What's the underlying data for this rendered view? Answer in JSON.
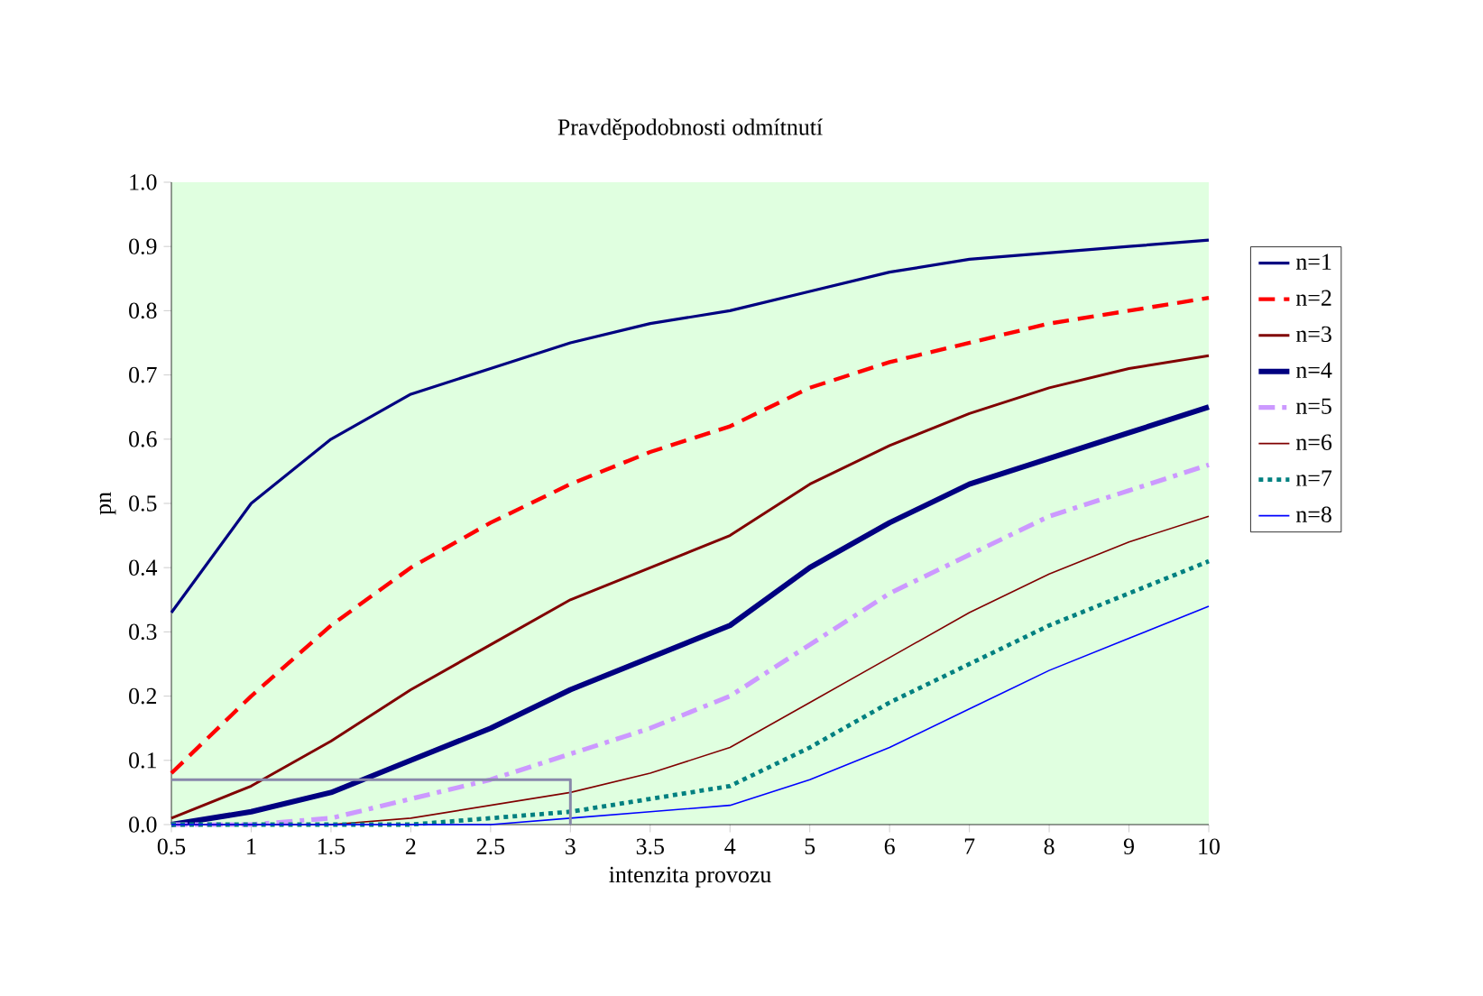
{
  "chart_data": {
    "type": "line",
    "title": "Pravděpodobnosti odmítnutí",
    "xlabel": "intenzita provozu",
    "ylabel": "pn",
    "categories": [
      "0.5",
      "1",
      "1.5",
      "2",
      "2.5",
      "3",
      "3.5",
      "4",
      "5",
      "6",
      "7",
      "8",
      "9",
      "10"
    ],
    "ylim": [
      0,
      1
    ],
    "yticks": [
      {
        "value": 0,
        "label": "0.0"
      },
      {
        "value": 0.1,
        "label": "0.1"
      },
      {
        "value": 0.2,
        "label": "0.2"
      },
      {
        "value": 0.3,
        "label": "0.3"
      },
      {
        "value": 0.4,
        "label": "0.4"
      },
      {
        "value": 0.5,
        "label": "0.5"
      },
      {
        "value": 0.6,
        "label": "0.6"
      },
      {
        "value": 0.7,
        "label": "0.7"
      },
      {
        "value": 0.8,
        "label": "0.8"
      },
      {
        "value": 0.9,
        "label": "0.9"
      },
      {
        "value": 1,
        "label": "1.0"
      }
    ],
    "legend": "right",
    "series": [
      {
        "name": "n=1",
        "color": "#000080",
        "line_style": "solid",
        "values": [
          0.33,
          0.5,
          0.6,
          0.67,
          0.71,
          0.75,
          0.78,
          0.8,
          0.83,
          0.86,
          0.88,
          0.89,
          0.9,
          0.91
        ]
      },
      {
        "name": "n=2",
        "color": "#ff0000",
        "line_style": "dashed",
        "values": [
          0.08,
          0.2,
          0.31,
          0.4,
          0.47,
          0.53,
          0.58,
          0.62,
          0.68,
          0.72,
          0.75,
          0.78,
          0.8,
          0.82
        ]
      },
      {
        "name": "n=3",
        "color": "#800000",
        "line_style": "solid",
        "values": [
          0.01,
          0.06,
          0.13,
          0.21,
          0.28,
          0.35,
          0.4,
          0.45,
          0.53,
          0.59,
          0.64,
          0.68,
          0.71,
          0.73
        ]
      },
      {
        "name": "n=4",
        "color": "#000080",
        "line_style": "solid",
        "values": [
          0.0,
          0.02,
          0.05,
          0.1,
          0.15,
          0.21,
          0.26,
          0.31,
          0.4,
          0.47,
          0.53,
          0.57,
          0.61,
          0.65
        ]
      },
      {
        "name": "n=5",
        "color": "#cc99ff",
        "line_style": "dashdot",
        "values": [
          0.0,
          0.0,
          0.01,
          0.04,
          0.07,
          0.11,
          0.15,
          0.2,
          0.28,
          0.36,
          0.42,
          0.48,
          0.52,
          0.56
        ]
      },
      {
        "name": "n=6",
        "color": "#800000",
        "line_style": "solid",
        "values": [
          0.0,
          0.0,
          0.0,
          0.01,
          0.03,
          0.05,
          0.08,
          0.12,
          0.19,
          0.26,
          0.33,
          0.39,
          0.44,
          0.48
        ]
      },
      {
        "name": "n=7",
        "color": "#008080",
        "line_style": "dotted",
        "values": [
          0.0,
          0.0,
          0.0,
          0.0,
          0.01,
          0.02,
          0.04,
          0.06,
          0.12,
          0.19,
          0.25,
          0.31,
          0.36,
          0.41
        ]
      },
      {
        "name": "n=8",
        "color": "#0000ff",
        "line_style": "solid",
        "values": [
          0.0,
          0.0,
          0.0,
          0.0,
          0.0,
          0.01,
          0.02,
          0.03,
          0.07,
          0.12,
          0.18,
          0.24,
          0.29,
          0.34
        ]
      },
      {
        "color": "#8888aa",
        "line_style": "solid",
        "x": [
          "0.5",
          "3",
          "3"
        ],
        "values": [
          0.07,
          0.07,
          0
        ]
      }
    ]
  }
}
